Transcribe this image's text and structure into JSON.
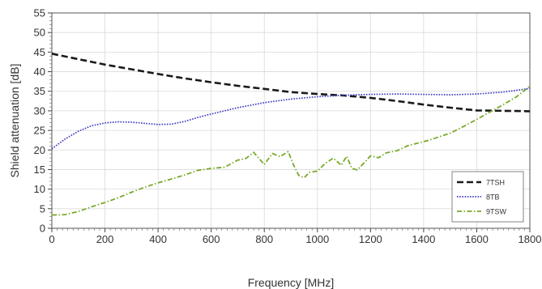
{
  "chart_data": {
    "type": "line",
    "xlabel": "Frequency [MHz]",
    "ylabel": "Shield attenuation [dB]",
    "xlim": [
      0,
      1800
    ],
    "ylim": [
      0,
      55
    ],
    "xticks": [
      0,
      200,
      400,
      600,
      800,
      1000,
      1200,
      1400,
      1600,
      1800
    ],
    "yticks": [
      0,
      5,
      10,
      15,
      20,
      25,
      30,
      35,
      40,
      45,
      50,
      55
    ],
    "grid": true,
    "legend": "bottom-right",
    "series": [
      {
        "name": "7TSH",
        "color": "#1a1a1a",
        "dash": "dashed",
        "x": [
          0,
          100,
          200,
          300,
          400,
          500,
          600,
          700,
          800,
          900,
          1000,
          1100,
          1200,
          1300,
          1400,
          1500,
          1600,
          1700,
          1800
        ],
        "y": [
          44.6,
          43.2,
          41.8,
          40.6,
          39.4,
          38.3,
          37.3,
          36.4,
          35.6,
          34.8,
          34.3,
          33.9,
          33.3,
          32.5,
          31.6,
          30.8,
          30.1,
          30.0,
          29.9
        ]
      },
      {
        "name": "8TB",
        "color": "#3b3bc4",
        "dash": "dotted",
        "x": [
          0,
          50,
          100,
          150,
          200,
          250,
          300,
          350,
          400,
          450,
          500,
          550,
          600,
          700,
          800,
          900,
          1000,
          1100,
          1200,
          1300,
          1400,
          1500,
          1600,
          1700,
          1800
        ],
        "y": [
          20.3,
          22.8,
          24.8,
          26.2,
          26.9,
          27.2,
          27.1,
          26.8,
          26.5,
          26.6,
          27.3,
          28.3,
          29.2,
          30.8,
          32.1,
          33.0,
          33.6,
          34.0,
          34.2,
          34.3,
          34.2,
          34.1,
          34.3,
          34.8,
          35.7
        ]
      },
      {
        "name": "9TSW",
        "color": "#7aa82a",
        "dash": "dashdot",
        "x": [
          0,
          50,
          100,
          150,
          200,
          250,
          300,
          350,
          400,
          450,
          500,
          550,
          600,
          650,
          700,
          730,
          760,
          800,
          830,
          860,
          890,
          910,
          930,
          950,
          970,
          1000,
          1030,
          1060,
          1090,
          1110,
          1130,
          1150,
          1180,
          1200,
          1230,
          1260,
          1300,
          1340,
          1380,
          1420,
          1460,
          1500,
          1550,
          1600,
          1650,
          1700,
          1750,
          1800
        ],
        "y": [
          3.4,
          3.5,
          4.3,
          5.5,
          6.6,
          7.8,
          9.2,
          10.5,
          11.6,
          12.6,
          13.6,
          14.8,
          15.3,
          15.6,
          17.4,
          17.8,
          19.4,
          16.3,
          19.1,
          18.3,
          19.6,
          16.2,
          13.5,
          12.9,
          14.3,
          14.6,
          16.6,
          17.9,
          16.1,
          18.4,
          15.3,
          14.9,
          17.0,
          18.5,
          18.0,
          19.3,
          19.8,
          21.1,
          21.8,
          22.5,
          23.4,
          24.3,
          26.0,
          27.8,
          29.7,
          31.6,
          33.6,
          36.3
        ]
      }
    ]
  }
}
